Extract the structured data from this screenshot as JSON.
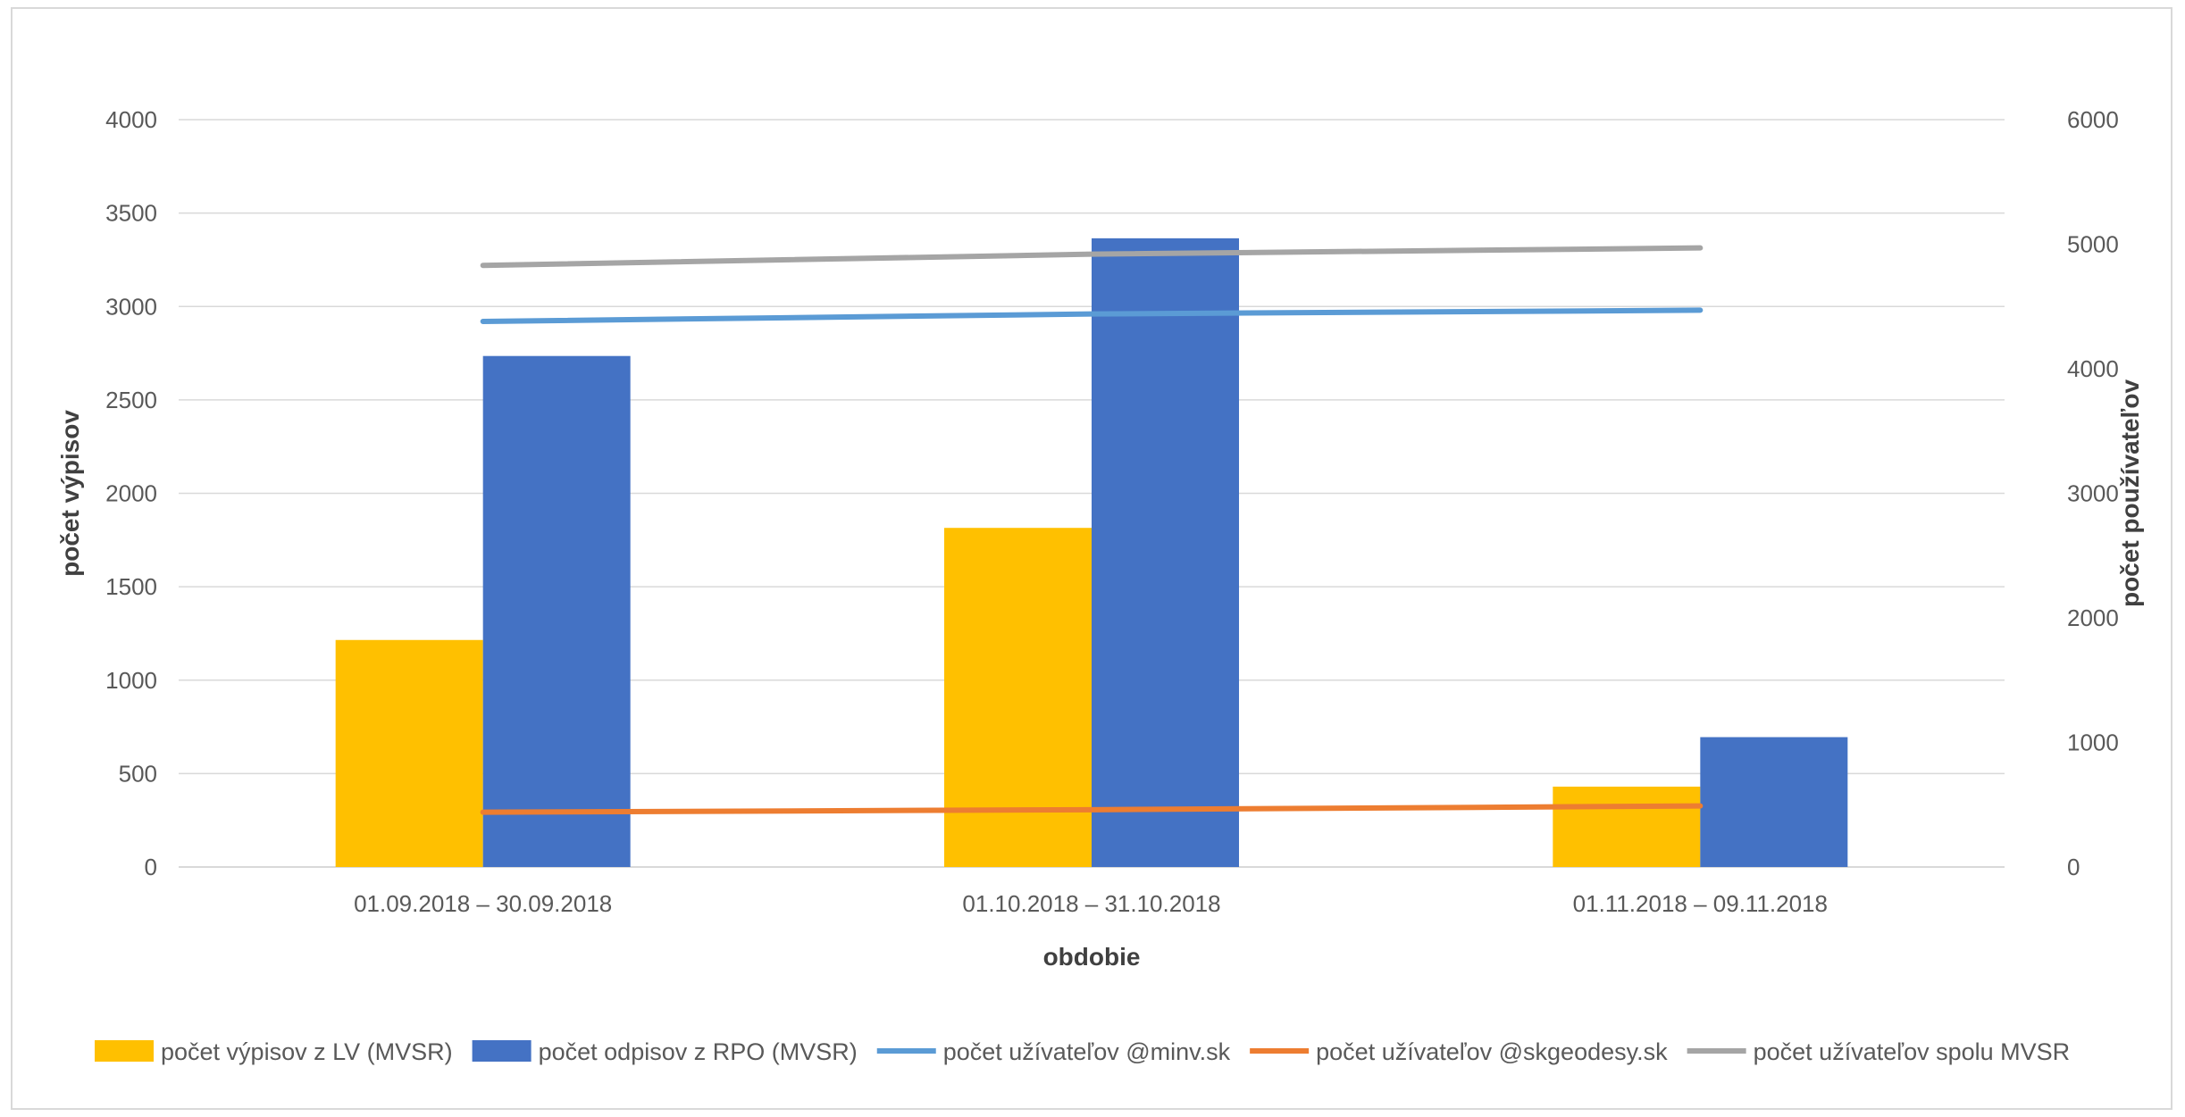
{
  "chart_data": {
    "type": "bar",
    "title": "",
    "xlabel": "obdobie",
    "ylabel": "počet výpisov",
    "y2label": "počet používateľov",
    "categories": [
      "01.09.2018 – 30.09.2018",
      "01.10.2018 – 31.10.2018",
      "01.11.2018 – 09.11.2018"
    ],
    "ylim": [
      0,
      4000
    ],
    "yticks": [
      0,
      500,
      1000,
      1500,
      2000,
      2500,
      3000,
      3500,
      4000
    ],
    "y2lim": [
      0,
      6000
    ],
    "y2ticks": [
      0,
      1000,
      2000,
      3000,
      4000,
      5000,
      6000
    ],
    "grid": true,
    "legend_position": "bottom",
    "series": [
      {
        "name": "počet výpisov z LV (MVSR)",
        "kind": "bar",
        "axis": "left",
        "color": "#FFC000",
        "values": [
          1215,
          1815,
          430
        ]
      },
      {
        "name": "počet odpisov z RPO (MVSR)",
        "kind": "bar",
        "axis": "left",
        "color": "#4472C4",
        "values": [
          2735,
          3365,
          695
        ]
      },
      {
        "name": "počet užívateľov @minv.sk",
        "kind": "line",
        "axis": "right",
        "color": "#5B9BD5",
        "values": [
          4380,
          4440,
          4470
        ]
      },
      {
        "name": "počet užívateľov @skgeodesy.sk",
        "kind": "line",
        "axis": "right",
        "color": "#ED7D31",
        "values": [
          440,
          460,
          490
        ]
      },
      {
        "name": "počet užívateľov spolu MVSR",
        "kind": "line",
        "axis": "right",
        "color": "#A5A5A5",
        "values": [
          4830,
          4920,
          4970
        ]
      }
    ]
  }
}
